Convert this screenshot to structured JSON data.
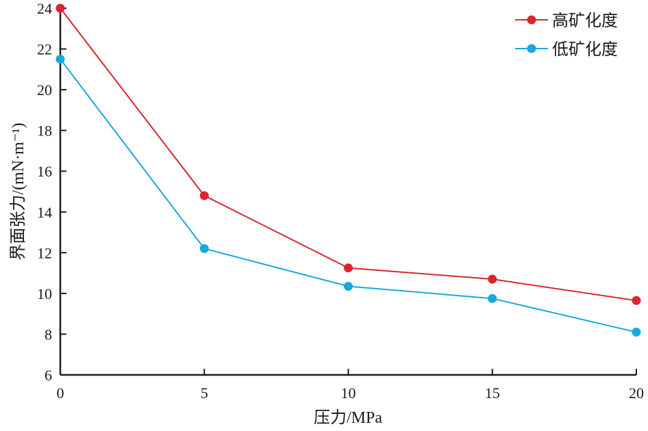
{
  "chart_data": {
    "type": "line",
    "title": "",
    "xlabel": "压力/MPa",
    "ylabel": "界面张力/(mN·m⁻¹)",
    "xlim": [
      0,
      20
    ],
    "ylim": [
      6,
      24
    ],
    "xticks": [
      0,
      5,
      10,
      15,
      20
    ],
    "yticks": [
      6,
      8,
      10,
      12,
      14,
      16,
      18,
      20,
      22,
      24
    ],
    "grid": false,
    "legend": "top-right",
    "x": [
      0,
      5,
      10,
      15,
      20
    ],
    "series": [
      {
        "name": "高矿化度",
        "color": "#d7262d",
        "values": [
          24.0,
          14.8,
          11.25,
          10.7,
          9.65
        ]
      },
      {
        "name": "低矿化度",
        "color": "#1aa7dd",
        "values": [
          21.5,
          12.2,
          10.35,
          9.75,
          8.1
        ]
      }
    ]
  }
}
